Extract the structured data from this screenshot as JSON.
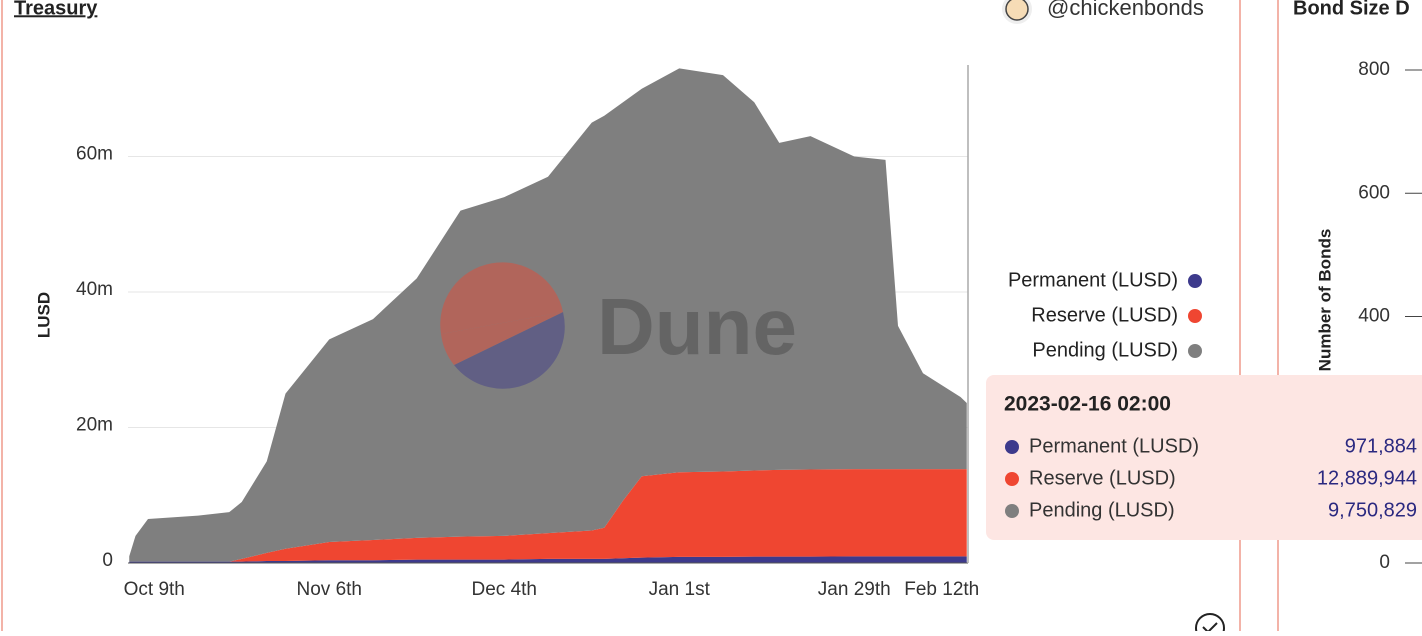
{
  "header": {
    "title": "Treasury",
    "handle": "@chickenbonds"
  },
  "watermark": "Dune",
  "chart_data": [
    {
      "type": "stacked-area",
      "ylabel": "LUSD",
      "x": [
        -4,
        -3,
        -1,
        7,
        12,
        14,
        18,
        21,
        28,
        35,
        42,
        49,
        56,
        63,
        70,
        72,
        75,
        78,
        84,
        91,
        96,
        100,
        105,
        112,
        117,
        119,
        123,
        129,
        130
      ],
      "xlim": [
        -4.2,
        130.2
      ],
      "xticks": [
        {
          "value": 0,
          "label": "Oct 9th"
        },
        {
          "value": 28,
          "label": "Nov 6th"
        },
        {
          "value": 56,
          "label": "Dec 4th"
        },
        {
          "value": 84,
          "label": "Jan 1st"
        },
        {
          "value": 112,
          "label": "Jan 29th"
        },
        {
          "value": 126,
          "label": "Feb 12th"
        }
      ],
      "ylim": [
        0,
        74000000
      ],
      "yticks": [
        0,
        {
          "value": 20000000,
          "label": "20m"
        },
        {
          "value": 40000000,
          "label": "40m"
        },
        {
          "value": 60000000,
          "label": "60m"
        }
      ],
      "grid": true,
      "legend": "right",
      "series": [
        {
          "name": "Permanent (LUSD)",
          "color": "#3d3a8c",
          "values": [
            200000,
            200000,
            200000,
            200000,
            200000,
            200000,
            300000,
            300000,
            400000,
            400000,
            500000,
            500000,
            500000,
            600000,
            600000,
            600000,
            700000,
            800000,
            900000,
            900000,
            950000,
            950000,
            950000,
            970000,
            970000,
            970000,
            970000,
            970000,
            971884
          ]
        },
        {
          "name": "Reserve (LUSD)",
          "color": "#ef4631",
          "values": [
            0,
            0,
            0,
            0,
            0,
            400000,
            1200000,
            1800000,
            2700000,
            3000000,
            3200000,
            3400000,
            3500000,
            3800000,
            4200000,
            4600000,
            8500000,
            12000000,
            12500000,
            12600000,
            12700000,
            12800000,
            12850000,
            12880000,
            12890000,
            12890000,
            12890000,
            12890000,
            12889944
          ]
        },
        {
          "name": "Pending (LUSD)",
          "color": "#7f7f7f",
          "values": [
            800000,
            3800000,
            6300000,
            6800000,
            7300000,
            8400000,
            13500000,
            22900000,
            29900000,
            32600000,
            38300000,
            48100000,
            50000000,
            52600000,
            60200000,
            60800000,
            58800000,
            57200000,
            59600000,
            58500000,
            54350000,
            48250000,
            49200000,
            46150000,
            45640000,
            21140000,
            14140000,
            10640000,
            9750829
          ]
        }
      ],
      "tooltip": {
        "title": "2023-02-16 02:00",
        "values": [
          971884,
          12889944,
          9750829
        ],
        "value_labels": [
          "971,884",
          "12,889,944",
          "9,750,829"
        ]
      }
    },
    {
      "type": "bar",
      "title": "Bond Size D",
      "ylabel": "Number of Bonds",
      "ylim": [
        0,
        800
      ],
      "yticks": [
        0,
        200,
        400,
        600,
        800
      ]
    }
  ]
}
